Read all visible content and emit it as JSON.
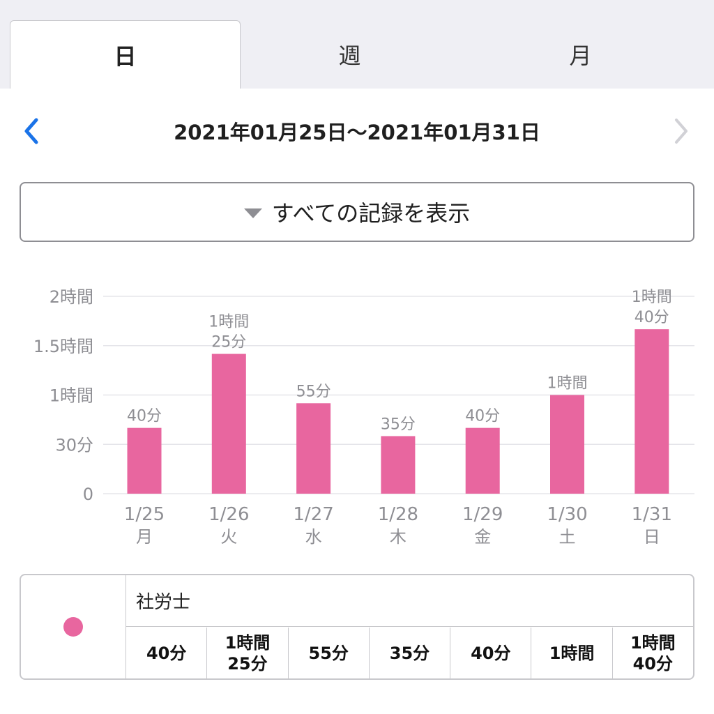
{
  "tabs": [
    {
      "label": "日",
      "active": true
    },
    {
      "label": "週",
      "active": false
    },
    {
      "label": "月",
      "active": false
    }
  ],
  "nav": {
    "prev_icon": "chevron-left-icon",
    "next_icon": "chevron-right-icon",
    "date_range": "2021年01月25日〜2021年01月31日"
  },
  "filter": {
    "icon": "triangle-down-icon",
    "label": "すべての記録を表示"
  },
  "colors": {
    "accent": "#1a73e8",
    "bar": "#e8669f",
    "axis_text": "#8e8e93",
    "grid": "#e5e5ea"
  },
  "chart_data": {
    "type": "bar",
    "categories": [
      "1/25",
      "1/26",
      "1/27",
      "1/28",
      "1/29",
      "1/30",
      "1/31"
    ],
    "weekdays": [
      "月",
      "火",
      "水",
      "木",
      "金",
      "土",
      "日"
    ],
    "values_minutes": [
      40,
      85,
      55,
      35,
      40,
      60,
      100
    ],
    "data_labels": [
      [
        "40分"
      ],
      [
        "1時間",
        "25分"
      ],
      [
        "55分"
      ],
      [
        "35分"
      ],
      [
        "40分"
      ],
      [
        "1時間"
      ],
      [
        "1時間",
        "40分"
      ]
    ],
    "yticks": [
      {
        "value": 0,
        "label": "0"
      },
      {
        "value": 30,
        "label": "30分"
      },
      {
        "value": 60,
        "label": "1時間"
      },
      {
        "value": 90,
        "label": "1.5時間"
      },
      {
        "value": 120,
        "label": "2時間"
      }
    ],
    "ylim": [
      0,
      120
    ],
    "grid": true,
    "series": [
      {
        "name": "社労士",
        "values": [
          40,
          85,
          55,
          35,
          40,
          60,
          100
        ]
      }
    ]
  },
  "legend": {
    "name": "社労士",
    "totals": [
      "40分",
      "1時間\n25分",
      "55分",
      "35分",
      "40分",
      "1時間",
      "1時間\n40分"
    ]
  }
}
